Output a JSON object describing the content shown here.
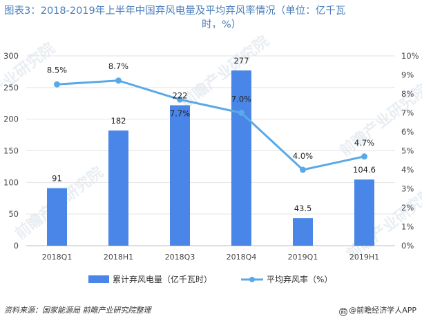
{
  "title_line1": "图表3：2018-2019年上半年中国弃风电量及平均弃风率情况（单位：亿千瓦",
  "title_line2": "时，%）",
  "footer": {
    "source": "资料来源：国家能源局 前瞻产业研究院整理",
    "brand": "@前瞻经济学人APP"
  },
  "watermark_text": "前瞻产业研究院",
  "chart_data": {
    "type": "bar+line",
    "categories": [
      "2018Q1",
      "2018H1",
      "2018Q3",
      "2018Q4",
      "2019Q1",
      "2019H1"
    ],
    "series": [
      {
        "name": "累计弃风电量（亿千瓦时）",
        "type": "bar",
        "axis": "left",
        "color": "#4a86e8",
        "values": [
          91,
          182,
          222,
          277,
          43.5,
          104.6
        ],
        "labels": [
          "91",
          "182",
          "222",
          "277",
          "43.5",
          "104.6"
        ]
      },
      {
        "name": "平均弃风率（%）",
        "type": "line",
        "axis": "right",
        "color": "#5aa9e6",
        "values": [
          8.5,
          8.7,
          7.7,
          7.0,
          4.0,
          4.7
        ],
        "labels": [
          "8.5%",
          "8.7%",
          "7.7%",
          "7.0%",
          "4.0%",
          "4.7%"
        ]
      }
    ],
    "left_axis": {
      "min": 0,
      "max": 300,
      "step": 50,
      "ticks": [
        "0",
        "50",
        "100",
        "150",
        "200",
        "250",
        "300"
      ]
    },
    "right_axis": {
      "min": 0,
      "max": 10,
      "step": 1,
      "ticks": [
        "0%",
        "1%",
        "2%",
        "3%",
        "4%",
        "5%",
        "6%",
        "7%",
        "8%",
        "9%",
        "10%"
      ]
    },
    "legend": [
      {
        "label": "累计弃风电量（亿千瓦时）",
        "marker": "bar"
      },
      {
        "label": "平均弃风率（%）",
        "marker": "line"
      }
    ],
    "legend_position": "bottom"
  }
}
